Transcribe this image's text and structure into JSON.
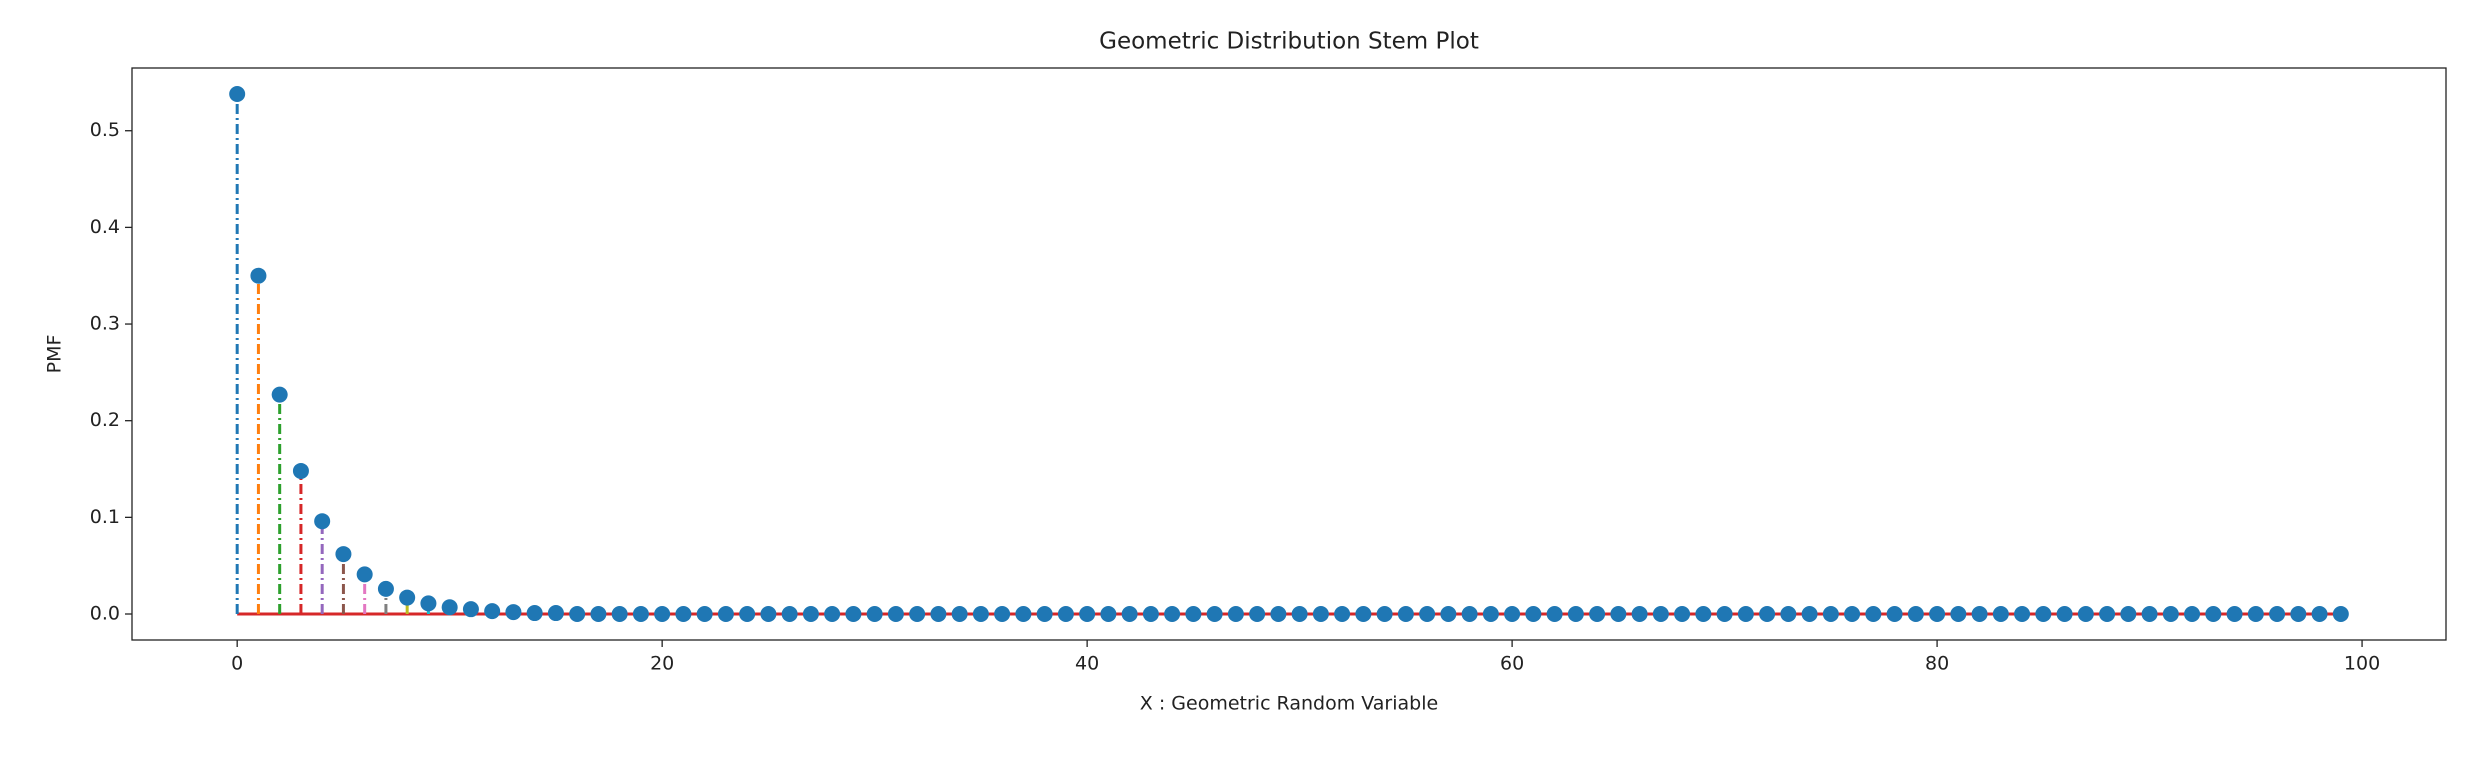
{
  "chart_data": {
    "type": "stem",
    "title": "Geometric Distribution Stem Plot",
    "x_label": "X : Geometric Random Variable",
    "y_label": "PMF",
    "x": [
      0,
      1,
      2,
      3,
      4,
      5,
      6,
      7,
      8,
      9,
      10,
      11,
      12,
      13,
      14,
      15,
      16,
      17,
      18,
      19,
      20,
      21,
      22,
      23,
      24,
      25,
      26,
      27,
      28,
      29,
      30,
      31,
      32,
      33,
      34,
      35,
      36,
      37,
      38,
      39,
      40,
      41,
      42,
      43,
      44,
      45,
      46,
      47,
      48,
      49,
      50,
      51,
      52,
      53,
      54,
      55,
      56,
      57,
      58,
      59,
      60,
      61,
      62,
      63,
      64,
      65,
      66,
      67,
      68,
      69,
      70,
      71,
      72,
      73,
      74,
      75,
      76,
      77,
      78,
      79,
      80,
      81,
      82,
      83,
      84,
      85,
      86,
      87,
      88,
      89,
      90,
      91,
      92,
      93,
      94,
      95,
      96,
      97,
      98,
      99
    ],
    "values": [
      0.538,
      0.35,
      0.227,
      0.148,
      0.096,
      0.062,
      0.041,
      0.026,
      0.017,
      0.011,
      0.007,
      0.005,
      0.003,
      0.002,
      0.001,
      0.001,
      0,
      0,
      0,
      0,
      0,
      0,
      0,
      0,
      0,
      0,
      0,
      0,
      0,
      0,
      0,
      0,
      0,
      0,
      0,
      0,
      0,
      0,
      0,
      0,
      0,
      0,
      0,
      0,
      0,
      0,
      0,
      0,
      0,
      0,
      0,
      0,
      0,
      0,
      0,
      0,
      0,
      0,
      0,
      0,
      0,
      0,
      0,
      0,
      0,
      0,
      0,
      0,
      0,
      0,
      0,
      0,
      0,
      0,
      0,
      0,
      0,
      0,
      0,
      0,
      0,
      0,
      0,
      0,
      0,
      0,
      0,
      0,
      0,
      0,
      0,
      0,
      0,
      0,
      0,
      0,
      0,
      0,
      0,
      0
    ],
    "marker_color": "#1f77b4",
    "baseline_color": "#d62728",
    "stem_colors": [
      "#1f77b4",
      "#ff7f0e",
      "#2ca02c",
      "#d62728",
      "#9467bd",
      "#8c564b",
      "#e377c2",
      "#7f7f7f",
      "#bcbd22",
      "#17becf"
    ],
    "xlim": [
      -4.95,
      103.95
    ],
    "ylim": [
      -0.0269,
      0.5649
    ],
    "xticks": [
      0,
      20,
      40,
      60,
      80,
      100
    ],
    "yticks": [
      {
        "value": 0,
        "label": "0.0"
      },
      0.1,
      0.2,
      0.3,
      0.4,
      0.5
    ],
    "grid": false
  }
}
